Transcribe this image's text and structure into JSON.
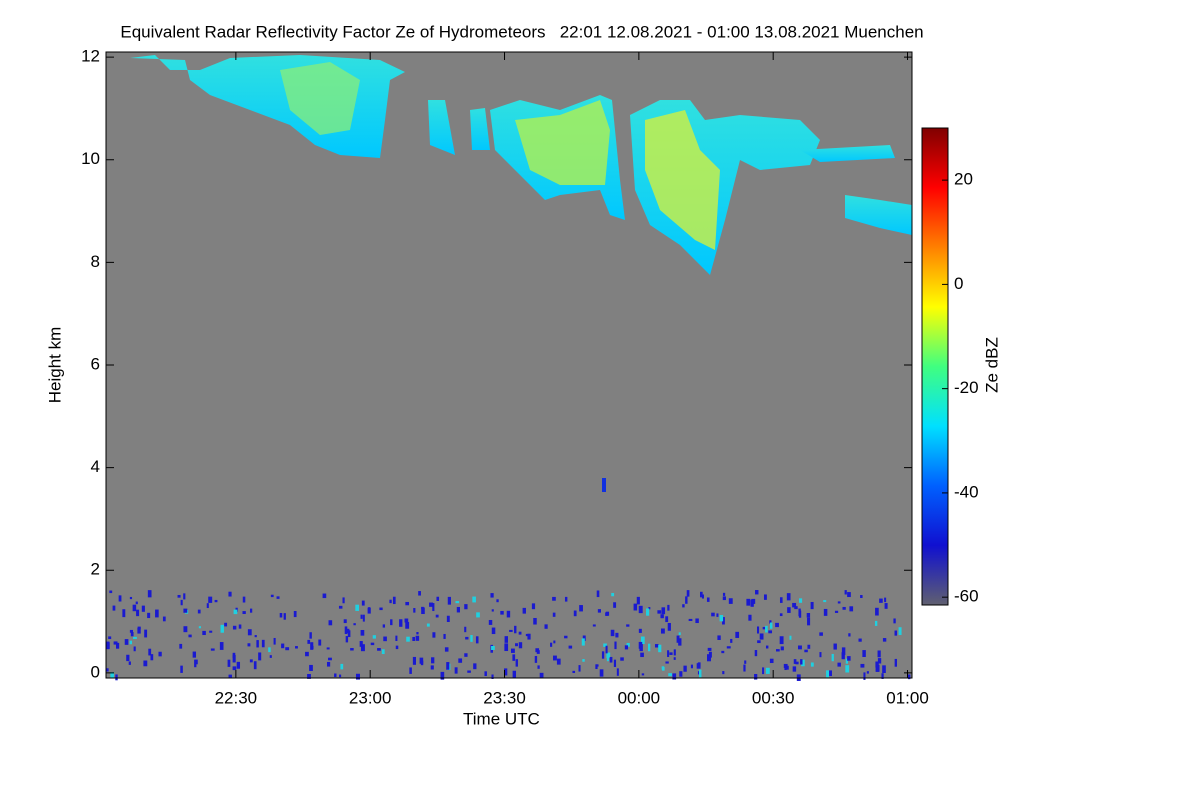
{
  "chart_data": {
    "type": "heatmap",
    "title": "Equivalent Radar Reflectivity Factor Ze of Hydrometeors   22:01 12.08.2021 - 01:00 13.08.2021 Muenchen",
    "x_label": "Time UTC",
    "y_label": "Height km",
    "xlim": [
      1,
      181
    ],
    "xticks": [
      {
        "value": 30,
        "label": "22:30"
      },
      {
        "value": 60,
        "label": "23:00"
      },
      {
        "value": 90,
        "label": "23:30"
      },
      {
        "value": 120,
        "label": "00:00"
      },
      {
        "value": 150,
        "label": "00:30"
      },
      {
        "value": 180,
        "label": "01:00"
      }
    ],
    "ylim": [
      -0.1,
      12.1
    ],
    "yticks": [
      0,
      2,
      4,
      6,
      8,
      10,
      12
    ],
    "colorbar": {
      "label": "Ze dBZ",
      "lim": [
        -61.5,
        30
      ],
      "ticks": [
        -60,
        -40,
        -20,
        0,
        20
      ],
      "colors": [
        "#606070",
        "#1010d0",
        "#0060ff",
        "#00e0ff",
        "#40ff80",
        "#ffff00",
        "#ff8000",
        "#ff0000",
        "#800000"
      ]
    }
  }
}
